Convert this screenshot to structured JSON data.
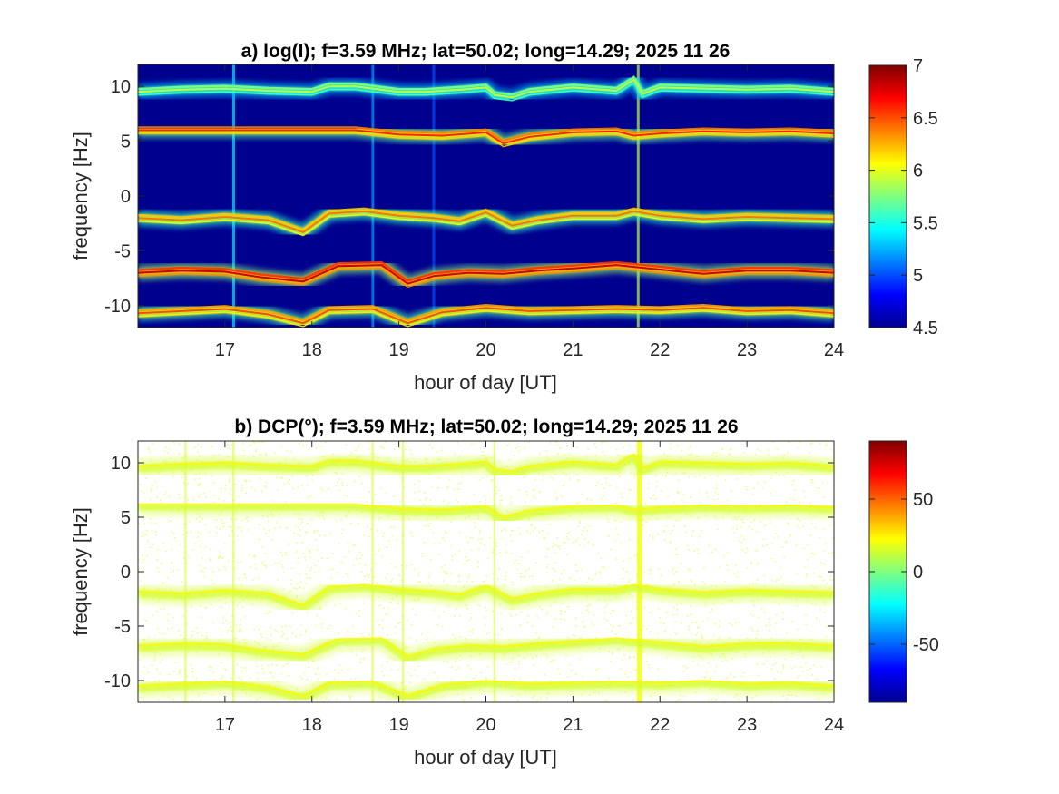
{
  "chart_data": [
    {
      "type": "heatmap",
      "title": "a) log(I); f=3.59 MHz;  lat=50.02; long=14.29; 2025 11 26",
      "xlabel": "hour of day [UT]",
      "ylabel": "frequency [Hz]",
      "xlim": [
        16,
        24
      ],
      "ylim": [
        -12,
        12
      ],
      "xticks": [
        17,
        18,
        19,
        20,
        21,
        22,
        23,
        24
      ],
      "yticks": [
        -10,
        -5,
        0,
        5,
        10
      ],
      "colorbar": {
        "range": [
          4.5,
          7
        ],
        "ticks": [
          4.5,
          5,
          5.5,
          6,
          6.5,
          7
        ],
        "colormap": "jet"
      },
      "background_value": 4.5,
      "bands": [
        {
          "name": "",
          "points": [
            [
              16.0,
              9.5
            ],
            [
              16.5,
              9.7
            ],
            [
              17.0,
              9.8
            ],
            [
              17.5,
              9.6
            ],
            [
              18.0,
              9.5
            ],
            [
              18.2,
              10.0
            ],
            [
              18.5,
              10.0
            ],
            [
              19.0,
              9.5
            ],
            [
              19.3,
              9.5
            ],
            [
              19.7,
              9.7
            ],
            [
              20.0,
              9.9
            ],
            [
              20.1,
              9.2
            ],
            [
              20.3,
              9.0
            ],
            [
              20.5,
              9.5
            ],
            [
              21.0,
              9.9
            ],
            [
              21.5,
              9.6
            ],
            [
              21.7,
              10.6
            ],
            [
              21.8,
              9.3
            ],
            [
              22.0,
              9.9
            ],
            [
              23.0,
              9.7
            ],
            [
              23.5,
              9.8
            ],
            [
              24.0,
              9.5
            ]
          ],
          "intensity": 5.9
        },
        {
          "name": "",
          "points": [
            [
              16.0,
              6.0
            ],
            [
              17.0,
              6.0
            ],
            [
              17.5,
              6.0
            ],
            [
              18.0,
              6.0
            ],
            [
              18.5,
              6.0
            ],
            [
              19.0,
              5.6
            ],
            [
              19.5,
              5.5
            ],
            [
              20.0,
              5.8
            ],
            [
              20.2,
              4.8
            ],
            [
              20.5,
              5.4
            ],
            [
              21.0,
              5.8
            ],
            [
              21.5,
              5.9
            ],
            [
              21.7,
              5.5
            ],
            [
              22.0,
              5.7
            ],
            [
              22.5,
              5.9
            ],
            [
              23.0,
              5.8
            ],
            [
              23.5,
              5.9
            ],
            [
              24.0,
              5.7
            ]
          ],
          "intensity": 6.6
        },
        {
          "name": "",
          "points": [
            [
              16.0,
              -2.0
            ],
            [
              16.5,
              -2.2
            ],
            [
              17.0,
              -1.9
            ],
            [
              17.5,
              -2.2
            ],
            [
              17.9,
              -3.3
            ],
            [
              18.2,
              -1.6
            ],
            [
              18.6,
              -1.4
            ],
            [
              19.0,
              -1.8
            ],
            [
              19.4,
              -2.0
            ],
            [
              19.7,
              -2.3
            ],
            [
              20.0,
              -1.5
            ],
            [
              20.3,
              -2.7
            ],
            [
              20.6,
              -2.2
            ],
            [
              21.0,
              -1.8
            ],
            [
              21.5,
              -1.8
            ],
            [
              21.7,
              -1.4
            ],
            [
              22.0,
              -1.8
            ],
            [
              22.5,
              -2.1
            ],
            [
              23.0,
              -1.9
            ],
            [
              23.5,
              -2.0
            ],
            [
              24.0,
              -2.1
            ]
          ],
          "intensity": 6.4
        },
        {
          "name": "",
          "points": [
            [
              16.0,
              -7.0
            ],
            [
              16.5,
              -6.8
            ],
            [
              17.0,
              -6.9
            ],
            [
              17.4,
              -7.4
            ],
            [
              17.9,
              -7.8
            ],
            [
              18.3,
              -6.4
            ],
            [
              18.8,
              -6.3
            ],
            [
              19.1,
              -8.0
            ],
            [
              19.4,
              -7.3
            ],
            [
              19.8,
              -7.0
            ],
            [
              20.2,
              -7.1
            ],
            [
              20.6,
              -6.8
            ],
            [
              21.0,
              -6.6
            ],
            [
              21.5,
              -6.3
            ],
            [
              22.0,
              -6.7
            ],
            [
              22.5,
              -7.1
            ],
            [
              23.0,
              -6.8
            ],
            [
              23.5,
              -6.8
            ],
            [
              24.0,
              -7.0
            ]
          ],
          "intensity": 6.8
        },
        {
          "name": "",
          "points": [
            [
              16.0,
              -10.7
            ],
            [
              16.5,
              -10.5
            ],
            [
              17.0,
              -10.3
            ],
            [
              17.5,
              -10.8
            ],
            [
              17.9,
              -11.6
            ],
            [
              18.2,
              -10.4
            ],
            [
              18.7,
              -10.3
            ],
            [
              19.1,
              -11.6
            ],
            [
              19.5,
              -10.6
            ],
            [
              20.0,
              -10.2
            ],
            [
              20.5,
              -10.5
            ],
            [
              21.0,
              -10.4
            ],
            [
              21.5,
              -10.3
            ],
            [
              22.0,
              -10.4
            ],
            [
              22.5,
              -10.2
            ],
            [
              23.0,
              -10.5
            ],
            [
              23.5,
              -10.4
            ],
            [
              24.0,
              -10.7
            ]
          ],
          "intensity": 6.5
        }
      ],
      "vertical_streaks": [
        {
          "x": 17.1,
          "value": 5.4
        },
        {
          "x": 18.7,
          "value": 5.2
        },
        {
          "x": 19.4,
          "value": 5.0
        },
        {
          "x": 21.75,
          "value": 5.9
        }
      ]
    },
    {
      "type": "heatmap",
      "title": "b) DCP(°); f=3.59 MHz;  lat=50.02; long=14.29; 2025 11 26",
      "xlabel": "hour of day [UT]",
      "ylabel": "frequency [Hz]",
      "xlim": [
        16,
        24
      ],
      "ylim": [
        -12,
        12
      ],
      "xticks": [
        17,
        18,
        19,
        20,
        21,
        22,
        23,
        24
      ],
      "yticks": [
        -10,
        -5,
        0,
        5,
        10
      ],
      "colorbar": {
        "range": [
          -90,
          90
        ],
        "ticks": [
          -50,
          0,
          50
        ],
        "colormap": "jet"
      },
      "background": "white",
      "dominant_value": 15,
      "vertical_streaks": [
        {
          "x": 16.55,
          "value": 15
        },
        {
          "x": 17.1,
          "value": 15
        },
        {
          "x": 18.7,
          "value": 15
        },
        {
          "x": 19.05,
          "value": 15
        },
        {
          "x": 20.1,
          "value": 15
        },
        {
          "x": 21.75,
          "value": 20
        }
      ]
    }
  ]
}
